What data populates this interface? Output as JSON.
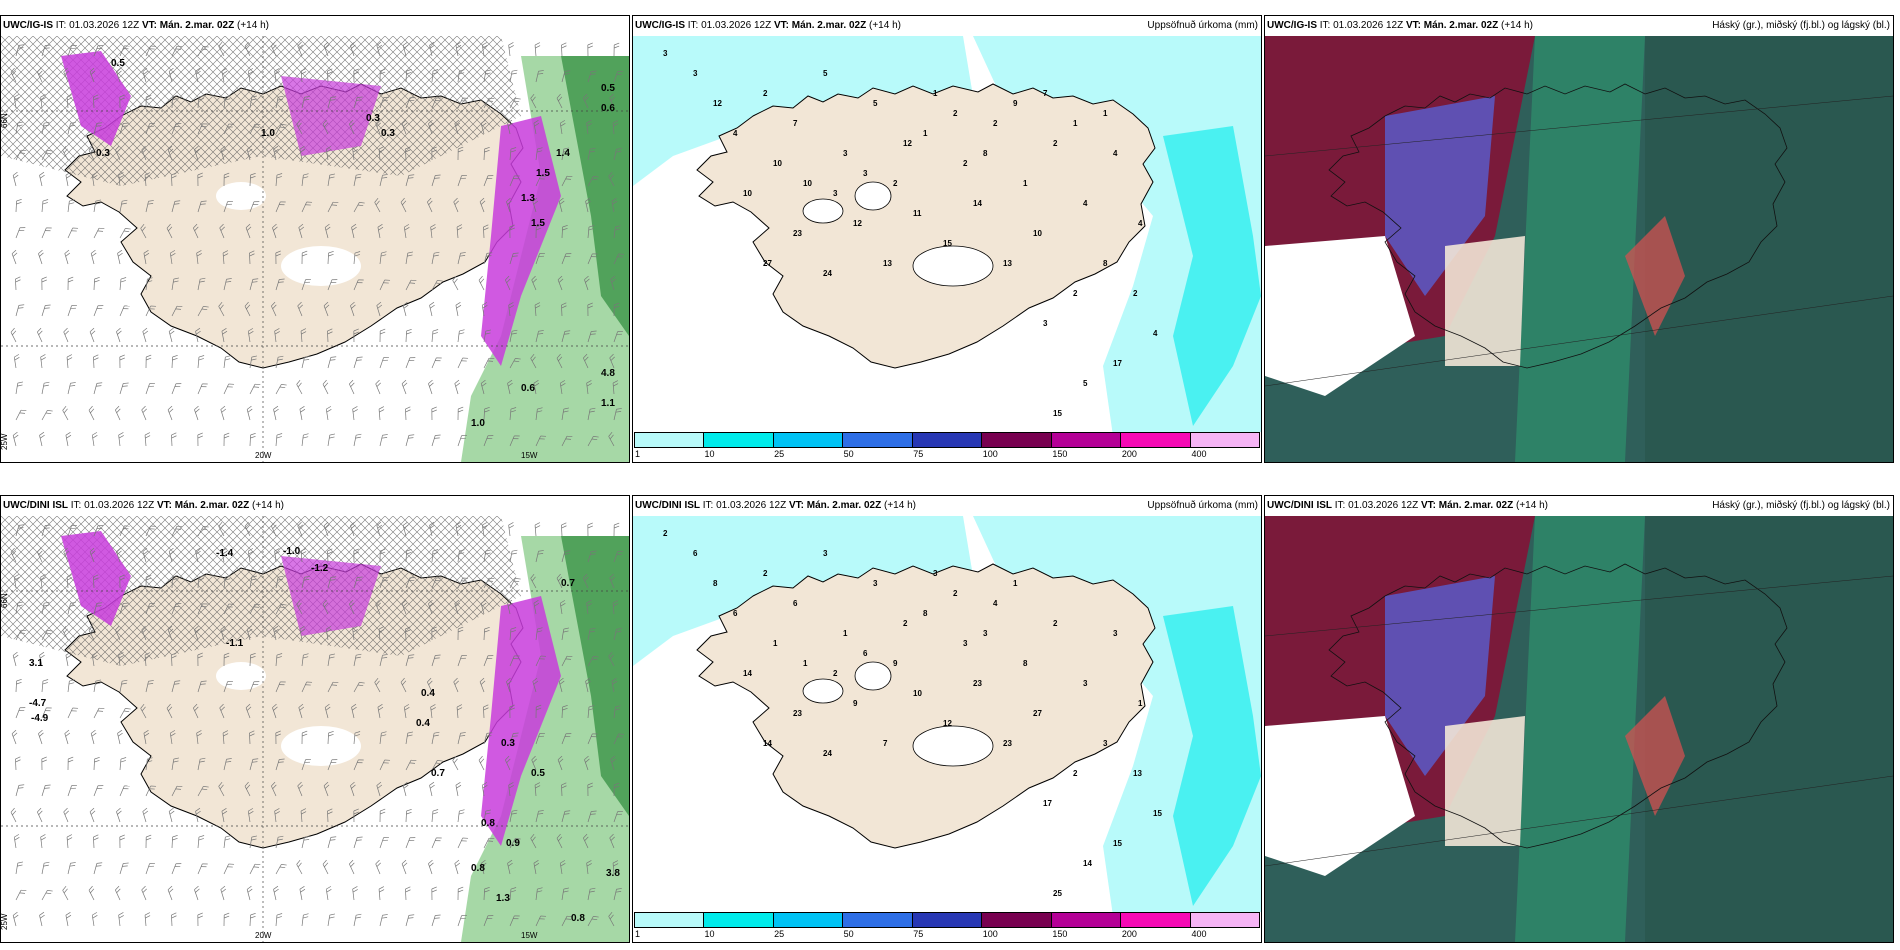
{
  "panels": [
    {
      "id": "p1",
      "model": "UWC/IG-IS",
      "it": "IT: 01.03.2026 12Z",
      "vt": "VT: Mán. 2.mar. 02Z",
      "lead": "(+14 h)",
      "right": "",
      "type": "wind",
      "labels": [
        "0.5",
        "0.5",
        "0.6",
        "1.4",
        "1.5",
        "1.3",
        "1.5",
        "0.3",
        "0.3",
        "1.0",
        "0.3",
        "0.6",
        "1.1",
        "1.0",
        "4.8"
      ],
      "axis": {
        "lat": "66N",
        "lon1": "20W",
        "lon2": "15W",
        "lon3": "25W"
      }
    },
    {
      "id": "p2",
      "model": "UWC/IG-IS",
      "it": "IT: 01.03.2026 12Z",
      "vt": "VT: Mán. 2.mar. 02Z",
      "lead": "(+14 h)",
      "right": "Uppsöfnuð úrkoma (mm)",
      "type": "precip",
      "labels": [
        "3",
        "3",
        "12",
        "4",
        "2",
        "7",
        "5",
        "3",
        "5",
        "12",
        "1",
        "2",
        "2",
        "1",
        "2",
        "4",
        "4",
        "4",
        "8",
        "2",
        "3",
        "2",
        "4",
        "17",
        "5",
        "15",
        "10",
        "13",
        "14",
        "15",
        "11",
        "13",
        "12",
        "24",
        "23",
        "27",
        "10",
        "10",
        "10",
        "3",
        "3",
        "2",
        "1",
        "2",
        "8",
        "9",
        "7",
        "1",
        "1"
      ]
    },
    {
      "id": "p3",
      "model": "UWC/IG-IS",
      "it": "IT: 01.03.2026 12Z",
      "vt": "VT: Mán. 2.mar. 02Z",
      "lead": "(+14 h)",
      "right": "Háský (gr.), miðský (fj.bl.) og lágský (bl.)",
      "type": "cloud"
    },
    {
      "id": "p4",
      "model": "UWC/DINI ISL",
      "it": "IT: 01.03.2026 12Z",
      "vt": "VT: Mán. 2.mar. 02Z",
      "lead": "(+14 h)",
      "right": "",
      "type": "wind",
      "labels": [
        "-1.4",
        "-1.0",
        "-1.2",
        "0.7",
        "3.1",
        "-4.7",
        "-4.9",
        "-1.1",
        "0.4",
        "0.3",
        "0.5",
        "0.8",
        "0.9",
        "0.8",
        "1.3",
        "3.8",
        "0.8",
        "0.7",
        "0.4"
      ],
      "axis": {
        "lat": "66N",
        "lon1": "20W",
        "lon2": "15W",
        "lon3": "25W"
      }
    },
    {
      "id": "p5",
      "model": "UWC/DINI ISL",
      "it": "IT: 01.03.2026 12Z",
      "vt": "VT: Mán. 2.mar. 02Z",
      "lead": "(+14 h)",
      "right": "Uppsöfnuð úrkoma (mm)",
      "type": "precip",
      "labels": [
        "2",
        "6",
        "8",
        "6",
        "2",
        "6",
        "3",
        "1",
        "3",
        "2",
        "3",
        "3",
        "4",
        "8",
        "2",
        "3",
        "3",
        "1",
        "3",
        "2",
        "17",
        "13",
        "15",
        "15",
        "14",
        "25",
        "27",
        "23",
        "23",
        "12",
        "10",
        "7",
        "9",
        "24",
        "23",
        "14",
        "14",
        "1",
        "1",
        "2",
        "6",
        "9",
        "8",
        "2",
        "3",
        "1"
      ]
    },
    {
      "id": "p6",
      "model": "UWC/DINI ISL",
      "it": "IT: 01.03.2026 12Z",
      "vt": "VT: Mán. 2.mar. 02Z",
      "lead": "(+14 h)",
      "right": "Háský (gr.), miðský (fj.bl.) og lágský (bl.)",
      "type": "cloud"
    }
  ],
  "colorbar": {
    "colors": [
      "#b8fafa",
      "#00ebeb",
      "#00c3f5",
      "#2d6ee6",
      "#2837b4",
      "#780050",
      "#b40096",
      "#f50ab4",
      "#f5b4f5"
    ],
    "ticks": [
      "1",
      "10",
      "25",
      "50",
      "75",
      "100",
      "150",
      "200",
      "400"
    ]
  },
  "colors": {
    "land": "#f2e6d6",
    "precip_light": "#b8fafa",
    "magenta": "#c83cdc",
    "green": "#2e8b3c"
  }
}
